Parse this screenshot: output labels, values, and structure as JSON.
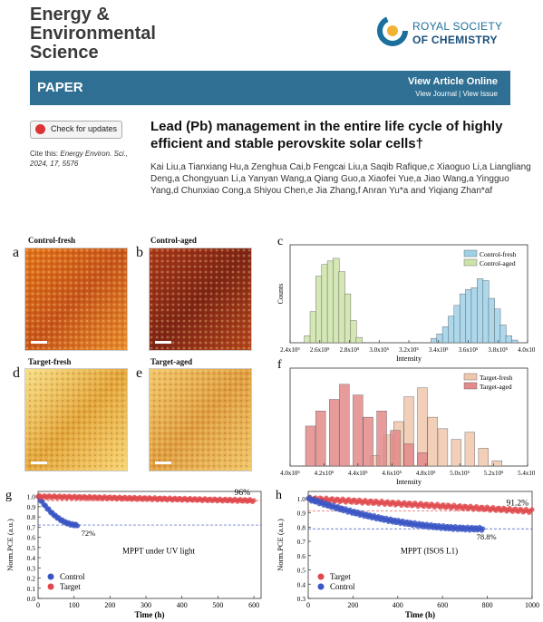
{
  "journal": {
    "line1": "Energy &",
    "line2": "Environmental",
    "line3": "Science"
  },
  "publisher": {
    "line1": "ROYAL SOCIETY",
    "line2": "OF CHEMISTRY"
  },
  "banner": {
    "label": "PAPER",
    "view_online": "View Article Online",
    "links": "View Journal | View Issue"
  },
  "check_updates": "Check for updates",
  "cite": {
    "label": "Cite this:",
    "ref": "Energy Environ. Sci., 2024, 17, 5576"
  },
  "title": "Lead (Pb) management in the entire life cycle of highly efficient and stable perovskite solar cells†",
  "authors": "Kai Liu,a Tianxiang Hu,a Zenghua Cai,b Fengcai Liu,a Saqib Rafique,c Xiaoguo Li,a Liangliang Deng,a Chongyuan Li,a Yanyan Wang,a Qiang Guo,a Xiaofei Yue,a Jiao Wang,a Yingguo Yang,d Chunxiao Cong,a Shiyou Chen,e Jia Zhang,f Anran Yu*a and Yiqiang Zhan*af",
  "panels": {
    "a": {
      "letter": "a",
      "caption": "Control-fresh"
    },
    "b": {
      "letter": "b",
      "caption": "Control-aged"
    },
    "d": {
      "letter": "d",
      "caption": "Target-fresh"
    },
    "e": {
      "letter": "e",
      "caption": "Target-aged"
    },
    "c": {
      "letter": "c"
    },
    "f": {
      "letter": "f"
    },
    "g": {
      "letter": "g"
    },
    "h": {
      "letter": "h"
    }
  },
  "colors": {
    "banner": "#2f6f93",
    "control_fresh": "#9fd0e6",
    "control_aged": "#cde3a8",
    "target_fresh": "#efc7ad",
    "target_aged": "#e38a8a",
    "control_pts": "#3b56c4",
    "target_pts": "#e0484c"
  },
  "chart_data": [
    {
      "type": "bar",
      "id": "c",
      "xlabel": "Intensity",
      "ylabel": "Counts",
      "x_ticks": [
        "2.4x10⁵",
        "2.6x10⁵",
        "2.8x10⁵",
        "3.0x10⁵",
        "3.2x10⁵",
        "3.4x10⁵",
        "3.6x10⁵",
        "3.8x10⁵",
        "4.0x10⁵"
      ],
      "xlim": [
        240000,
        405000
      ],
      "legend": "top-right",
      "series": [
        {
          "name": "Control-fresh",
          "color": "#9fd0e6",
          "bins": [
            [
              340000,
              0.05
            ],
            [
              344000,
              0.1
            ],
            [
              348000,
              0.18
            ],
            [
              352000,
              0.3
            ],
            [
              356000,
              0.42
            ],
            [
              360000,
              0.55
            ],
            [
              364000,
              0.6
            ],
            [
              368000,
              0.62
            ],
            [
              372000,
              0.72
            ],
            [
              376000,
              0.7
            ],
            [
              380000,
              0.5
            ],
            [
              384000,
              0.38
            ],
            [
              388000,
              0.2
            ],
            [
              392000,
              0.08
            ],
            [
              396000,
              0.03
            ]
          ]
        },
        {
          "name": "Control-aged",
          "color": "#cde3a8",
          "bins": [
            [
              252000,
              0.08
            ],
            [
              256000,
              0.35
            ],
            [
              260000,
              0.75
            ],
            [
              264000,
              0.88
            ],
            [
              268000,
              0.92
            ],
            [
              272000,
              0.95
            ],
            [
              276000,
              0.8
            ],
            [
              280000,
              0.55
            ],
            [
              284000,
              0.25
            ],
            [
              288000,
              0.06
            ]
          ]
        }
      ]
    },
    {
      "type": "bar",
      "id": "f",
      "xlabel": "Intensity",
      "ylabel": "",
      "x_ticks": [
        "4.0x10⁵",
        "4.2x10⁵",
        "4.4x10⁵",
        "4.6x10⁵",
        "4.8x10⁵",
        "5.0x10⁵",
        "5.2x10⁵",
        "5.4x10⁵"
      ],
      "xlim": [
        400000,
        540000
      ],
      "legend": "top-right",
      "series": [
        {
          "name": "Target-fresh",
          "color": "#efc7ad",
          "bins": [
            [
              450000,
              0.12
            ],
            [
              458000,
              0.35
            ],
            [
              464000,
              0.5
            ],
            [
              470000,
              0.78
            ],
            [
              478000,
              0.88
            ],
            [
              484000,
              0.55
            ],
            [
              490000,
              0.42
            ],
            [
              498000,
              0.3
            ],
            [
              506000,
              0.38
            ],
            [
              514000,
              0.2
            ],
            [
              522000,
              0.06
            ]
          ]
        },
        {
          "name": "Target-aged",
          "color": "#e38a8a",
          "bins": [
            [
              412000,
              0.45
            ],
            [
              418000,
              0.62
            ],
            [
              426000,
              0.75
            ],
            [
              432000,
              0.92
            ],
            [
              440000,
              0.8
            ],
            [
              446000,
              0.55
            ],
            [
              454000,
              0.62
            ],
            [
              462000,
              0.4
            ],
            [
              470000,
              0.25
            ],
            [
              478000,
              0.15
            ]
          ]
        }
      ]
    },
    {
      "type": "scatter",
      "id": "g",
      "xlabel": "Time (h)",
      "ylabel": "Norm.PCE (a.u.)",
      "xlim": [
        0,
        620
      ],
      "ylim": [
        0,
        1.05
      ],
      "x_ticks": [
        0,
        100,
        200,
        300,
        400,
        500,
        600
      ],
      "y_ticks": [
        0,
        0.1,
        0.2,
        0.3,
        0.4,
        0.5,
        0.6,
        0.7,
        0.8,
        0.9,
        1.0
      ],
      "annotation": "MPPT under UV light",
      "label_target": "96%",
      "label_control": "72%",
      "legend": "lower-left",
      "series": [
        {
          "name": "Control",
          "color": "#3b56c4",
          "start": [
            0,
            1.0
          ],
          "end": [
            110,
            0.72
          ],
          "count": 45
        },
        {
          "name": "Target",
          "color": "#e0484c",
          "start": [
            0,
            1.0
          ],
          "end": [
            600,
            0.96
          ],
          "count": 160
        }
      ]
    },
    {
      "type": "scatter",
      "id": "h",
      "xlabel": "Time (h)",
      "ylabel": "Norm.PCE (a.u.)",
      "xlim": [
        0,
        1000
      ],
      "ylim": [
        0.3,
        1.05
      ],
      "x_ticks": [
        0,
        200,
        400,
        600,
        800,
        1000
      ],
      "y_ticks": [
        0.3,
        0.4,
        0.5,
        0.6,
        0.7,
        0.8,
        0.9,
        1.0
      ],
      "annotation": "MPPT (ISOS L1)",
      "label_target": "91.2%",
      "label_control": "78.8%",
      "legend": "lower-left",
      "series": [
        {
          "name": "Target",
          "color": "#e0484c",
          "start": [
            0,
            1.0
          ],
          "end": [
            1000,
            0.912
          ],
          "count": 150
        },
        {
          "name": "Control",
          "color": "#3b56c4",
          "start": [
            0,
            1.0
          ],
          "end": [
            780,
            0.788
          ],
          "count": 160
        }
      ]
    }
  ]
}
